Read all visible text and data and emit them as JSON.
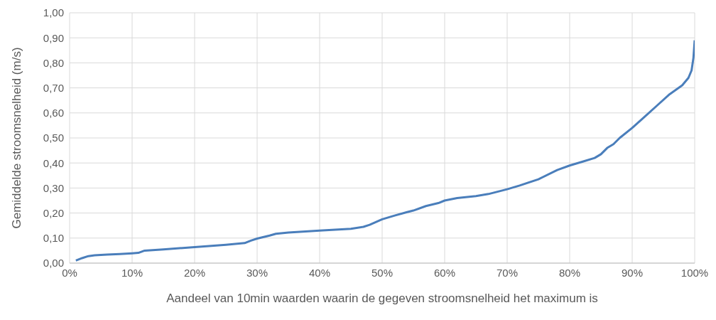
{
  "chart_data": {
    "type": "line",
    "xlabel": "Aandeel van 10min waarden waarin de gegeven stroomsnelheid het maximum is",
    "ylabel": "Gemiddelde stroomsnelheid (m/s)",
    "x": [
      1,
      2,
      3,
      4,
      6,
      8,
      10,
      11,
      12,
      15,
      20,
      25,
      28,
      29,
      30,
      32,
      33,
      35,
      40,
      45,
      47,
      48,
      50,
      52,
      54,
      55,
      57,
      59,
      60,
      62,
      65,
      67,
      70,
      72,
      75,
      78,
      80,
      82,
      84,
      85,
      86,
      87,
      88,
      90,
      92,
      94,
      96,
      98,
      99,
      99.5,
      99.8,
      100
    ],
    "series": [
      {
        "color": "#4a7ebb",
        "values": [
          0.01,
          0.02,
          0.028,
          0.031,
          0.034,
          0.036,
          0.039,
          0.041,
          0.05,
          0.055,
          0.064,
          0.073,
          0.08,
          0.09,
          0.098,
          0.11,
          0.117,
          0.122,
          0.13,
          0.137,
          0.145,
          0.153,
          0.175,
          0.19,
          0.204,
          0.21,
          0.228,
          0.24,
          0.25,
          0.26,
          0.268,
          0.276,
          0.295,
          0.31,
          0.335,
          0.372,
          0.39,
          0.405,
          0.42,
          0.435,
          0.46,
          0.475,
          0.5,
          0.54,
          0.585,
          0.63,
          0.675,
          0.71,
          0.74,
          0.77,
          0.82,
          0.89
        ]
      }
    ],
    "xlim": [
      0,
      100
    ],
    "xticks": [
      {
        "value": 0,
        "label": "0%"
      },
      {
        "value": 10,
        "label": "10%"
      },
      {
        "value": 20,
        "label": "20%"
      },
      {
        "value": 30,
        "label": "30%"
      },
      {
        "value": 40,
        "label": "40%"
      },
      {
        "value": 50,
        "label": "50%"
      },
      {
        "value": 60,
        "label": "60%"
      },
      {
        "value": 70,
        "label": "70%"
      },
      {
        "value": 80,
        "label": "80%"
      },
      {
        "value": 90,
        "label": "90%"
      },
      {
        "value": 100,
        "label": "100%"
      }
    ],
    "ylim": [
      0,
      1
    ],
    "yticks": [
      {
        "value": 0,
        "label": "0,00"
      },
      {
        "value": 0.1,
        "label": "0,10"
      },
      {
        "value": 0.2,
        "label": "0,20"
      },
      {
        "value": 0.3,
        "label": "0,30"
      },
      {
        "value": 0.4,
        "label": "0,40"
      },
      {
        "value": 0.5,
        "label": "0,50"
      },
      {
        "value": 0.6,
        "label": "0,60"
      },
      {
        "value": 0.7,
        "label": "0,70"
      },
      {
        "value": 0.8,
        "label": "0,80"
      },
      {
        "value": 0.9,
        "label": "0,90"
      },
      {
        "value": 1,
        "label": "1,00"
      }
    ],
    "grid": true,
    "marker": "none",
    "line_style": "solid"
  }
}
